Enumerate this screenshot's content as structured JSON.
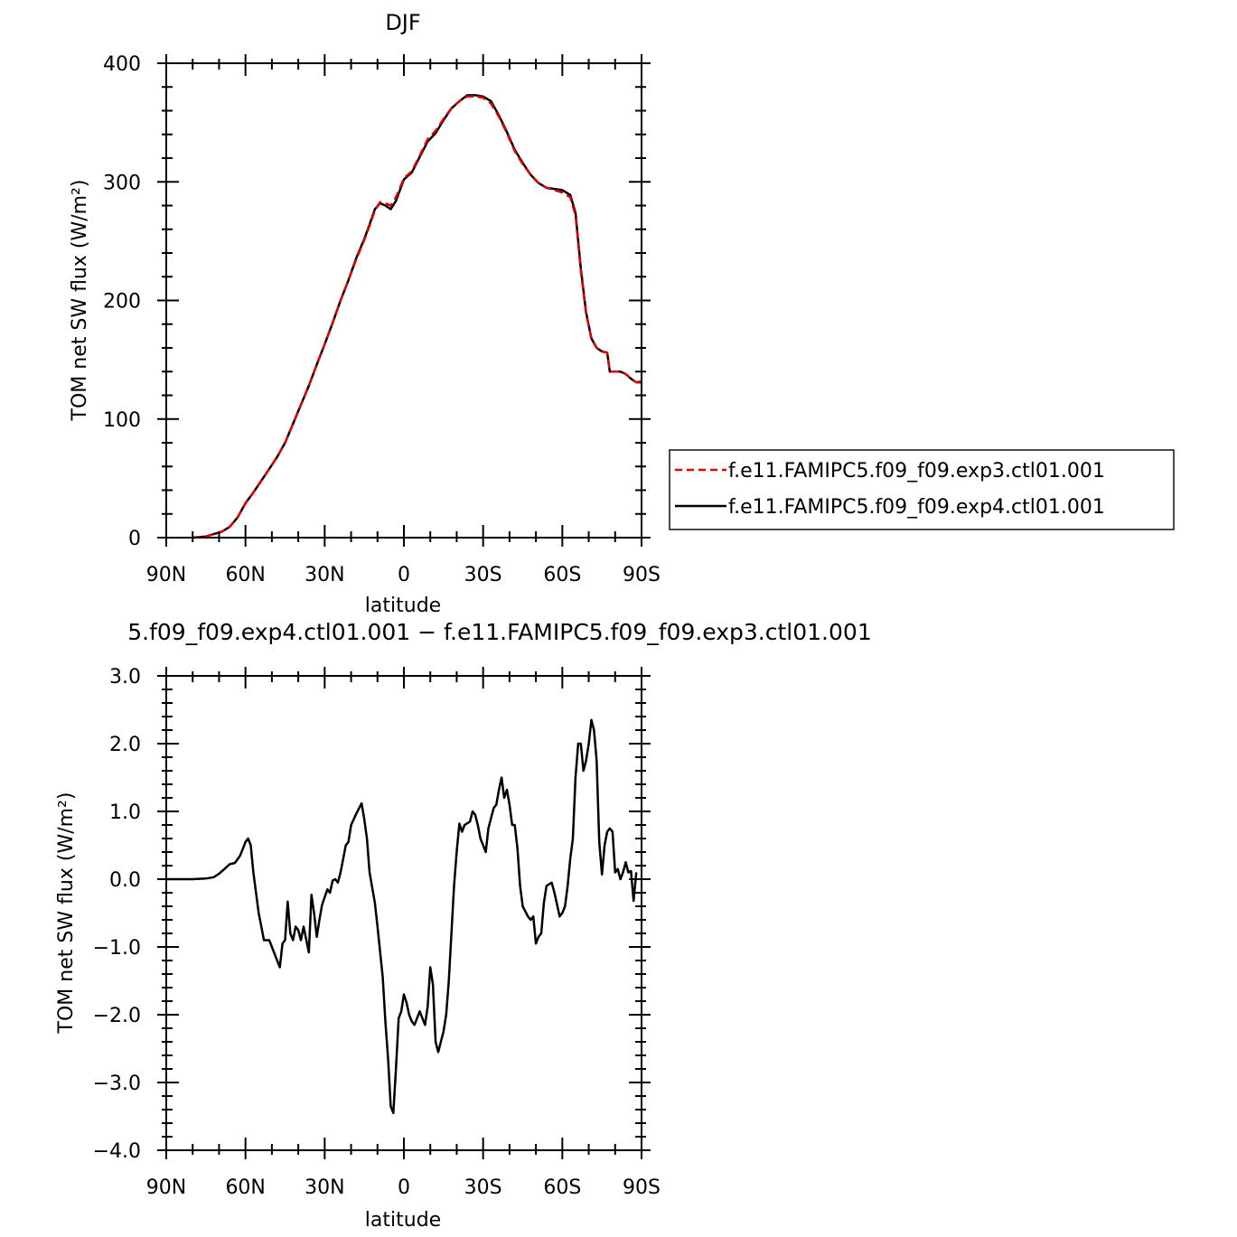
{
  "chart_data": [
    {
      "type": "line",
      "title": "DJF",
      "xlabel": "latitude",
      "ylabel": "TOM net SW flux (W/m²)",
      "xlim": [
        -90,
        90
      ],
      "ylim": [
        0,
        400
      ],
      "x_ticks": [
        -90,
        -60,
        -30,
        0,
        30,
        60,
        90
      ],
      "x_tick_labels": [
        "90N",
        "60N",
        "30N",
        "0",
        "30S",
        "60S",
        "90S"
      ],
      "y_ticks": [
        0,
        100,
        200,
        300,
        400
      ],
      "y_tick_labels": [
        "0",
        "100",
        "200",
        "300",
        "400"
      ],
      "grid": false,
      "legend": "right",
      "series": [
        {
          "name": "f.e11.FAMIPC5.f09_f09.exp3.ctl01.001",
          "color": "#e00000",
          "dash": "dashed",
          "x": [
            -80,
            -75,
            -72,
            -69,
            -66,
            -63,
            -60,
            -57,
            -54,
            -51,
            -48,
            -45,
            -42,
            -39,
            -36,
            -33,
            -30,
            -27,
            -24,
            -21,
            -18,
            -15,
            -13,
            -11,
            -9,
            -7,
            -5,
            -3,
            0,
            3,
            6,
            9,
            12,
            15,
            18,
            21,
            24,
            27,
            30,
            33,
            36,
            39,
            42,
            45,
            48,
            51,
            54,
            57,
            60,
            63,
            65,
            67,
            69,
            71,
            73,
            75,
            77,
            78,
            80,
            82,
            84,
            86,
            88,
            90
          ],
          "y": [
            0,
            1,
            3,
            5,
            9,
            17,
            29,
            38,
            48,
            58,
            68,
            80,
            96,
            112,
            128,
            146,
            163,
            181,
            200,
            217,
            235,
            251,
            263,
            276,
            283,
            282,
            280,
            287,
            303,
            309,
            322,
            336,
            343,
            353,
            362,
            368,
            372,
            372,
            371,
            366,
            355,
            341,
            326,
            315,
            306,
            299,
            295,
            293,
            291,
            287,
            272,
            225,
            189,
            168,
            160,
            157,
            156,
            140,
            140,
            140,
            138,
            134,
            131,
            132
          ]
        },
        {
          "name": "f.e11.FAMIPC5.f09_f09.exp4.ctl01.001",
          "color": "#000000",
          "dash": "solid",
          "x": [
            -80,
            -75,
            -72,
            -69,
            -66,
            -63,
            -60,
            -57,
            -54,
            -51,
            -48,
            -45,
            -42,
            -39,
            -36,
            -33,
            -30,
            -27,
            -24,
            -21,
            -18,
            -15,
            -13,
            -11,
            -9,
            -7,
            -5,
            -3,
            0,
            3,
            6,
            9,
            12,
            15,
            18,
            21,
            24,
            27,
            30,
            33,
            36,
            39,
            42,
            45,
            48,
            51,
            54,
            57,
            60,
            63,
            65,
            67,
            69,
            71,
            73,
            75,
            77,
            78,
            80,
            82,
            84,
            86,
            88,
            90
          ],
          "y": [
            0,
            1,
            3,
            5,
            9,
            17,
            29,
            38,
            48,
            58,
            68,
            80,
            96,
            112,
            128,
            146,
            163,
            181,
            200,
            217,
            236,
            252,
            264,
            277,
            282,
            280,
            277,
            284,
            302,
            308,
            321,
            334,
            341,
            352,
            362,
            368,
            373,
            373,
            372,
            368,
            356,
            342,
            327,
            316,
            306,
            299,
            295,
            294,
            293,
            289,
            274,
            227,
            190,
            168,
            160,
            157,
            156,
            140,
            140,
            140,
            138,
            134,
            131,
            131
          ]
        }
      ]
    },
    {
      "type": "line",
      "title": "5.f09_f09.exp4.ctl01.001 − f.e11.FAMIPC5.f09_f09.exp3.ctl01.001",
      "xlabel": "latitude",
      "ylabel": "TOM net SW flux (W/m²)",
      "xlim": [
        -90,
        90
      ],
      "ylim": [
        -4,
        3
      ],
      "x_ticks": [
        -90,
        -60,
        -30,
        0,
        30,
        60,
        90
      ],
      "x_tick_labels": [
        "90N",
        "60N",
        "30N",
        "0",
        "30S",
        "60S",
        "90S"
      ],
      "y_ticks": [
        -4,
        -3,
        -2,
        -1,
        0,
        1,
        2,
        3
      ],
      "y_tick_labels": [
        "−4.0",
        "−3.0",
        "−2.0",
        "−1.0",
        "0.0",
        "1.0",
        "2.0",
        "3.0"
      ],
      "grid": false,
      "series": [
        {
          "color": "#000000",
          "dash": "solid",
          "x": [
            -90,
            -80,
            -75,
            -72,
            -70,
            -68,
            -66,
            -64,
            -62,
            -60,
            -59,
            -58,
            -57,
            -55,
            -54,
            -53,
            -51,
            -50,
            -49,
            -47,
            -46,
            -45,
            -44,
            -43,
            -42,
            -41,
            -40,
            -39,
            -38,
            -36,
            -35,
            -34,
            -33,
            -32,
            -31,
            -29,
            -28,
            -27,
            -26,
            -25,
            -24,
            -22,
            -21,
            -20,
            -18,
            -16,
            -15,
            -14,
            -13,
            -11,
            -10,
            -8,
            -7,
            -6,
            -5,
            -4,
            -3,
            -2,
            -1,
            0,
            1,
            2,
            3,
            4,
            5,
            6,
            8,
            9,
            10,
            11,
            12,
            13,
            14,
            15,
            16,
            17,
            18,
            19,
            20,
            21,
            22,
            23,
            25,
            26,
            27,
            28,
            29,
            30,
            31,
            32,
            33,
            34,
            35,
            36,
            37,
            38,
            39,
            40,
            41,
            42,
            43,
            44,
            45,
            47,
            48,
            49,
            50,
            51,
            52,
            53,
            54,
            56,
            57,
            59,
            60,
            61,
            62,
            63,
            64,
            65,
            66,
            67,
            68,
            69,
            70,
            71,
            72,
            73,
            74,
            75,
            76,
            77,
            78,
            79,
            80,
            81,
            82,
            83,
            84,
            85,
            86,
            87,
            88
          ],
          "y": [
            0,
            0,
            0.01,
            0.03,
            0.08,
            0.15,
            0.22,
            0.24,
            0.35,
            0.55,
            0.6,
            0.5,
            0.1,
            -0.5,
            -0.7,
            -0.9,
            -0.9,
            -1.0,
            -1.1,
            -1.3,
            -0.95,
            -0.9,
            -0.33,
            -0.8,
            -0.9,
            -0.7,
            -0.75,
            -0.9,
            -0.7,
            -1.08,
            -0.23,
            -0.5,
            -0.85,
            -0.6,
            -0.38,
            -0.15,
            -0.2,
            -0.02,
            0.0,
            -0.05,
            0.1,
            0.5,
            0.55,
            0.8,
            0.97,
            1.12,
            0.88,
            0.6,
            0.1,
            -0.35,
            -0.7,
            -1.45,
            -2.1,
            -2.65,
            -3.35,
            -3.45,
            -2.8,
            -2.05,
            -1.95,
            -1.7,
            -1.82,
            -2.0,
            -2.1,
            -2.15,
            -2.05,
            -1.95,
            -2.15,
            -1.88,
            -1.3,
            -1.55,
            -2.4,
            -2.55,
            -2.4,
            -2.25,
            -2.0,
            -1.5,
            -0.8,
            -0.1,
            0.4,
            0.82,
            0.7,
            0.8,
            0.85,
            1.0,
            0.95,
            0.8,
            0.6,
            0.5,
            0.4,
            0.75,
            0.9,
            1.05,
            1.1,
            1.32,
            1.5,
            1.2,
            1.32,
            1.1,
            0.8,
            0.8,
            0.45,
            -0.1,
            -0.4,
            -0.55,
            -0.6,
            -0.55,
            -0.95,
            -0.85,
            -0.8,
            -0.35,
            -0.1,
            -0.05,
            -0.2,
            -0.55,
            -0.5,
            -0.4,
            -0.1,
            0.3,
            0.6,
            1.5,
            2.0,
            2.0,
            1.6,
            1.75,
            2.0,
            2.35,
            2.2,
            1.75,
            0.55,
            0.07,
            0.5,
            0.7,
            0.75,
            0.7,
            0.1,
            0.15,
            0.0,
            0.1,
            0.25,
            0.1,
            0.12,
            -0.32,
            0.1
          ]
        }
      ]
    }
  ]
}
